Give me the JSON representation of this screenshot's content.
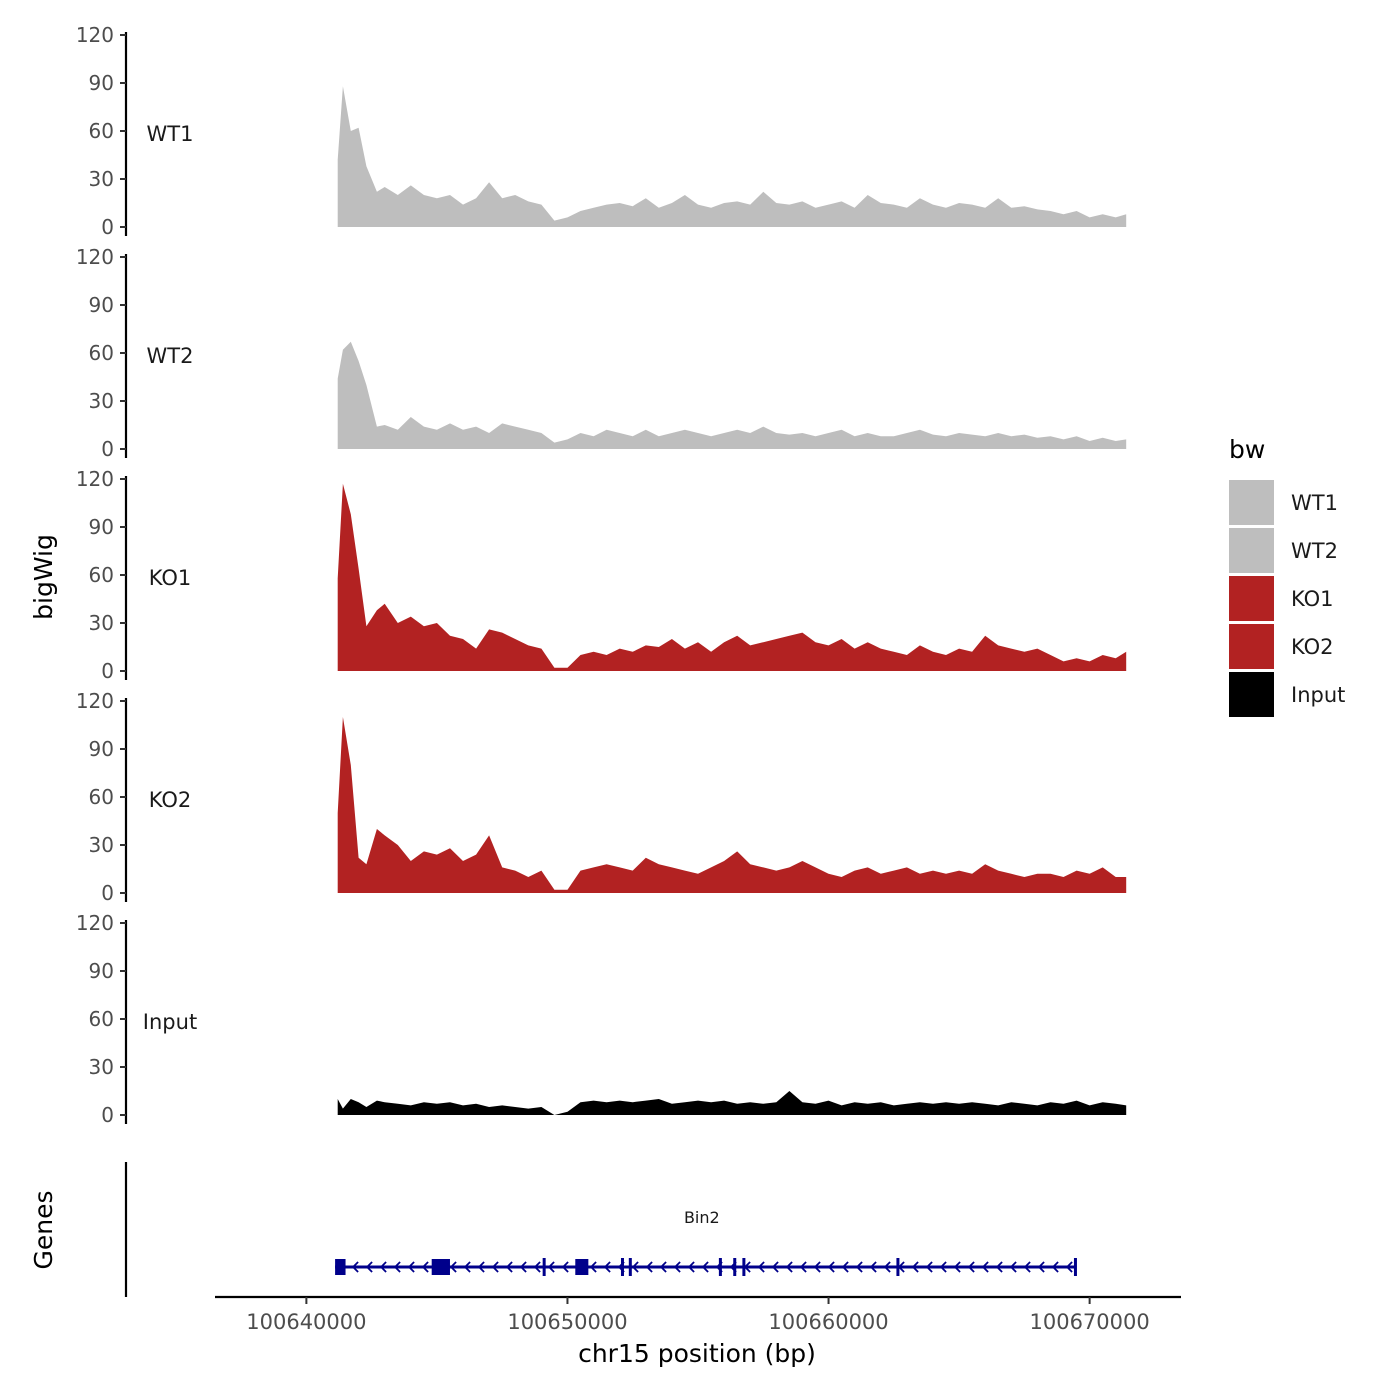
{
  "chart_data": {
    "type": "area",
    "chromosome": "chr15",
    "xlabel": "chr15 position (bp)",
    "ylabel_tracks": "bigWig",
    "ylabel_genes": "Genes",
    "xlim": [
      100636500,
      100673500
    ],
    "ylim": [
      0,
      120
    ],
    "yticks": [
      0,
      30,
      60,
      90,
      120
    ],
    "xticks": [
      100640000,
      100650000,
      100660000,
      100670000
    ],
    "xtick_labels": [
      "100640000",
      "100650000",
      "100660000",
      "100670000"
    ],
    "ytick_labels": [
      "0",
      "30",
      "60",
      "90",
      "120"
    ],
    "legend": {
      "title": "bw",
      "position": "right"
    },
    "series": [
      {
        "name": "WT1",
        "color": "#BEBEBE",
        "x": [
          100641200,
          100641400,
          100641700,
          100642000,
          100642300,
          100642700,
          100643000,
          100643500,
          100644000,
          100644500,
          100645000,
          100645500,
          100646000,
          100646500,
          100647000,
          100647500,
          100648000,
          100648500,
          100649000,
          100649500,
          100650000,
          100650500,
          100651000,
          100651500,
          100652000,
          100652500,
          100653000,
          100653500,
          100654000,
          100654500,
          100655000,
          100655500,
          100656000,
          100656500,
          100657000,
          100657500,
          100658000,
          100658500,
          100659000,
          100659500,
          100660000,
          100660500,
          100661000,
          100661500,
          100662000,
          100662500,
          100663000,
          100663500,
          100664000,
          100664500,
          100665000,
          100665500,
          100666000,
          100666500,
          100667000,
          100667500,
          100668000,
          100668500,
          100669000,
          100669500,
          100670000,
          100670500,
          100671000,
          100671400
        ],
        "y": [
          42,
          88,
          60,
          62,
          38,
          22,
          25,
          20,
          26,
          20,
          18,
          20,
          14,
          18,
          28,
          18,
          20,
          16,
          14,
          4,
          6,
          10,
          12,
          14,
          15,
          13,
          18,
          12,
          15,
          20,
          14,
          12,
          15,
          16,
          14,
          22,
          15,
          14,
          16,
          12,
          14,
          16,
          12,
          20,
          15,
          14,
          12,
          18,
          14,
          12,
          15,
          14,
          12,
          18,
          12,
          13,
          11,
          10,
          8,
          10,
          6,
          8,
          6,
          8
        ]
      },
      {
        "name": "WT2",
        "color": "#BEBEBE",
        "x": [
          100641200,
          100641400,
          100641700,
          100642000,
          100642300,
          100642700,
          100643000,
          100643500,
          100644000,
          100644500,
          100645000,
          100645500,
          100646000,
          100646500,
          100647000,
          100647500,
          100648000,
          100648500,
          100649000,
          100649500,
          100650000,
          100650500,
          100651000,
          100651500,
          100652000,
          100652500,
          100653000,
          100653500,
          100654000,
          100654500,
          100655000,
          100655500,
          100656000,
          100656500,
          100657000,
          100657500,
          100658000,
          100658500,
          100659000,
          100659500,
          100660000,
          100660500,
          100661000,
          100661500,
          100662000,
          100662500,
          100663000,
          100663500,
          100664000,
          100664500,
          100665000,
          100665500,
          100666000,
          100666500,
          100667000,
          100667500,
          100668000,
          100668500,
          100669000,
          100669500,
          100670000,
          100670500,
          100671000,
          100671400
        ],
        "y": [
          44,
          62,
          67,
          55,
          40,
          14,
          15,
          12,
          20,
          14,
          12,
          16,
          12,
          14,
          10,
          16,
          14,
          12,
          10,
          4,
          6,
          10,
          8,
          12,
          10,
          8,
          12,
          8,
          10,
          12,
          10,
          8,
          10,
          12,
          10,
          14,
          10,
          9,
          10,
          8,
          10,
          12,
          8,
          10,
          8,
          8,
          10,
          12,
          9,
          8,
          10,
          9,
          8,
          10,
          8,
          9,
          7,
          8,
          6,
          8,
          5,
          7,
          5,
          6
        ]
      },
      {
        "name": "KO1",
        "color": "#B22222",
        "x": [
          100641200,
          100641400,
          100641700,
          100642000,
          100642300,
          100642700,
          100643000,
          100643500,
          100644000,
          100644500,
          100645000,
          100645500,
          100646000,
          100646500,
          100647000,
          100647500,
          100648000,
          100648500,
          100649000,
          100649500,
          100650000,
          100650500,
          100651000,
          100651500,
          100652000,
          100652500,
          100653000,
          100653500,
          100654000,
          100654500,
          100655000,
          100655500,
          100656000,
          100656500,
          100657000,
          100657500,
          100658000,
          100658500,
          100659000,
          100659500,
          100660000,
          100660500,
          100661000,
          100661500,
          100662000,
          100662500,
          100663000,
          100663500,
          100664000,
          100664500,
          100665000,
          100665500,
          100666000,
          100666500,
          100667000,
          100667500,
          100668000,
          100668500,
          100669000,
          100669500,
          100670000,
          100670500,
          100671000,
          100671400
        ],
        "y": [
          58,
          117,
          98,
          64,
          28,
          38,
          42,
          30,
          34,
          28,
          30,
          22,
          20,
          14,
          26,
          24,
          20,
          16,
          14,
          2,
          2,
          10,
          12,
          10,
          14,
          12,
          16,
          15,
          20,
          14,
          18,
          12,
          18,
          22,
          16,
          18,
          20,
          22,
          24,
          18,
          16,
          20,
          14,
          18,
          14,
          12,
          10,
          16,
          12,
          10,
          14,
          12,
          22,
          16,
          14,
          12,
          14,
          10,
          6,
          8,
          6,
          10,
          8,
          12
        ]
      },
      {
        "name": "KO2",
        "color": "#B22222",
        "x": [
          100641200,
          100641400,
          100641700,
          100642000,
          100642300,
          100642700,
          100643000,
          100643500,
          100644000,
          100644500,
          100645000,
          100645500,
          100646000,
          100646500,
          100647000,
          100647500,
          100648000,
          100648500,
          100649000,
          100649500,
          100650000,
          100650500,
          100651000,
          100651500,
          100652000,
          100652500,
          100653000,
          100653500,
          100654000,
          100654500,
          100655000,
          100655500,
          100656000,
          100656500,
          100657000,
          100657500,
          100658000,
          100658500,
          100659000,
          100659500,
          100660000,
          100660500,
          100661000,
          100661500,
          100662000,
          100662500,
          100663000,
          100663500,
          100664000,
          100664500,
          100665000,
          100665500,
          100666000,
          100666500,
          100667000,
          100667500,
          100668000,
          100668500,
          100669000,
          100669500,
          100670000,
          100670500,
          100671000,
          100671400
        ],
        "y": [
          50,
          110,
          80,
          22,
          18,
          40,
          36,
          30,
          20,
          26,
          24,
          28,
          20,
          24,
          36,
          16,
          14,
          10,
          14,
          2,
          2,
          14,
          16,
          18,
          16,
          14,
          22,
          18,
          16,
          14,
          12,
          16,
          20,
          26,
          18,
          16,
          14,
          16,
          20,
          16,
          12,
          10,
          14,
          16,
          12,
          14,
          16,
          12,
          14,
          12,
          14,
          12,
          18,
          14,
          12,
          10,
          12,
          12,
          10,
          14,
          12,
          16,
          10,
          10
        ]
      },
      {
        "name": "Input",
        "color": "#000000",
        "x": [
          100641200,
          100641400,
          100641700,
          100642000,
          100642300,
          100642700,
          100643000,
          100643500,
          100644000,
          100644500,
          100645000,
          100645500,
          100646000,
          100646500,
          100647000,
          100647500,
          100648000,
          100648500,
          100649000,
          100649500,
          100650000,
          100650500,
          100651000,
          100651500,
          100652000,
          100652500,
          100653000,
          100653500,
          100654000,
          100654500,
          100655000,
          100655500,
          100656000,
          100656500,
          100657000,
          100657500,
          100658000,
          100658500,
          100659000,
          100659500,
          100660000,
          100660500,
          100661000,
          100661500,
          100662000,
          100662500,
          100663000,
          100663500,
          100664000,
          100664500,
          100665000,
          100665500,
          100666000,
          100666500,
          100667000,
          100667500,
          100668000,
          100668500,
          100669000,
          100669500,
          100670000,
          100670500,
          100671000,
          100671400
        ],
        "y": [
          10,
          4,
          10,
          8,
          5,
          9,
          8,
          7,
          6,
          8,
          7,
          8,
          6,
          7,
          5,
          6,
          5,
          4,
          5,
          0,
          2,
          8,
          9,
          8,
          9,
          8,
          9,
          10,
          7,
          8,
          9,
          8,
          9,
          7,
          8,
          7,
          8,
          15,
          8,
          7,
          9,
          6,
          8,
          7,
          8,
          6,
          7,
          8,
          7,
          8,
          7,
          8,
          7,
          6,
          8,
          7,
          6,
          8,
          7,
          9,
          6,
          8,
          7,
          6
        ]
      }
    ],
    "genes": [
      {
        "name": "Bin2",
        "strand": "-",
        "color": "#00008B",
        "start": 100641100,
        "end": 100669500,
        "exons": [
          [
            100641100,
            100641500
          ],
          [
            100644800,
            100645500
          ],
          [
            100650300,
            100650800
          ],
          [
            100649050,
            100649150
          ],
          [
            100652050,
            100652150
          ],
          [
            100652350,
            100652450
          ],
          [
            100655800,
            100655900
          ],
          [
            100656350,
            100656450
          ],
          [
            100656700,
            100656800
          ],
          [
            100662600,
            100662700
          ],
          [
            100669400,
            100669500
          ]
        ]
      }
    ]
  }
}
